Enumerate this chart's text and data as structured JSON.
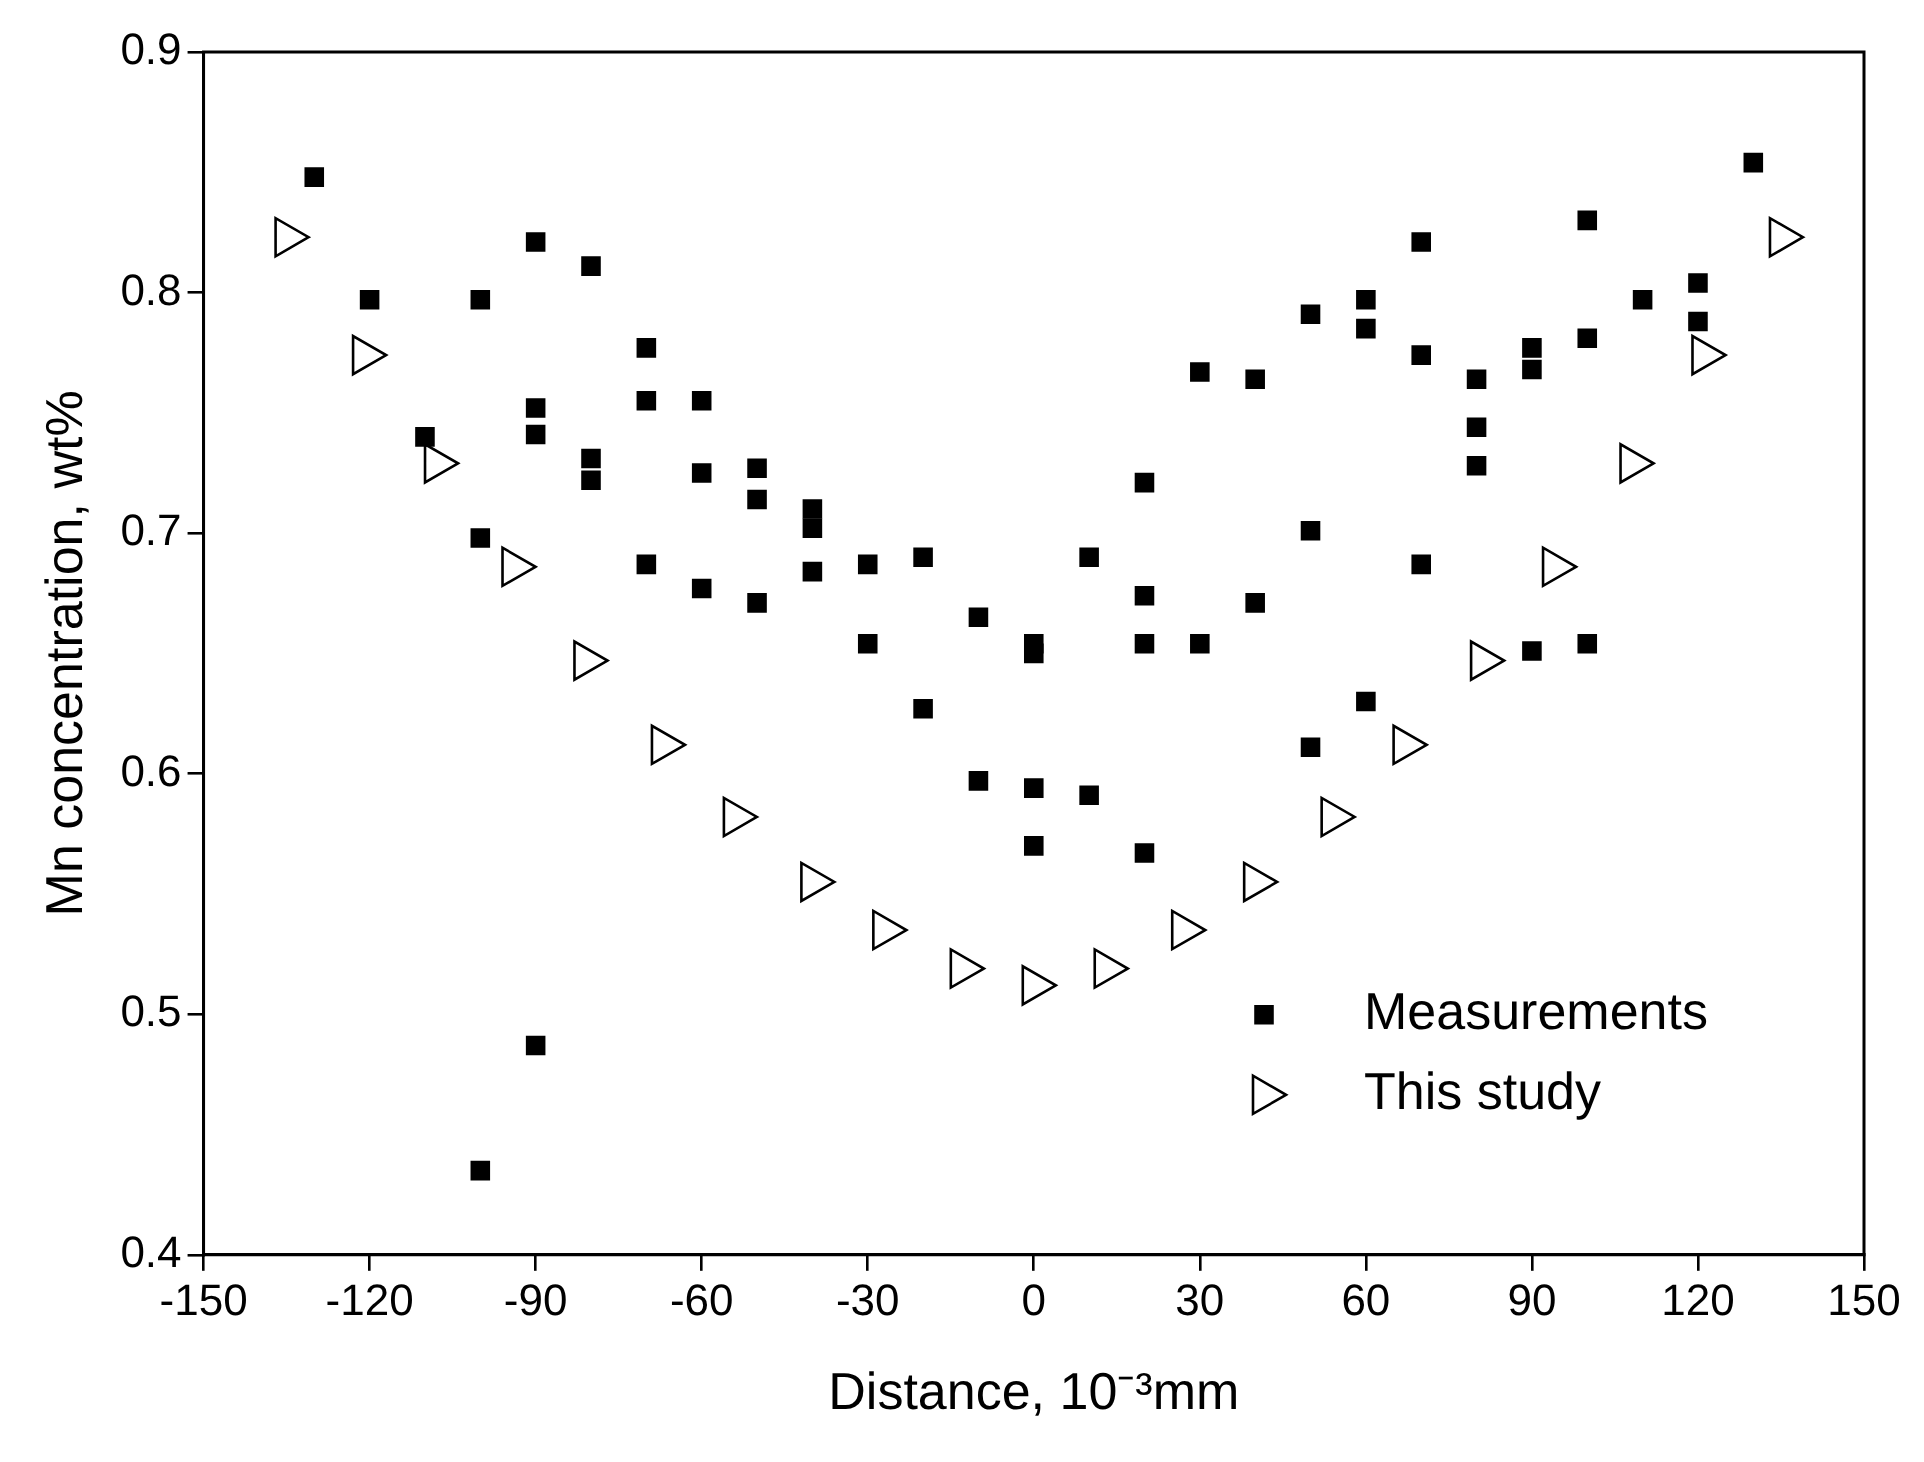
{
  "chart_data": {
    "type": "scatter",
    "xlabel": "Distance, 10⁻³mm",
    "ylabel": "Mn concentration, wt%",
    "xlim": [
      -150,
      150
    ],
    "xticks": [
      -150,
      -120,
      -90,
      -60,
      -30,
      0,
      30,
      60,
      90,
      120,
      150
    ],
    "ylim": [
      0.4,
      0.9
    ],
    "yticks": [
      0.4,
      0.5,
      0.6,
      0.7,
      0.8,
      0.9
    ],
    "grid": false,
    "legend": "bottom right",
    "series": [
      {
        "name": "Measurements",
        "color": "#000000",
        "marker": "square",
        "x": [
          -130,
          -120,
          -110,
          -100,
          -100,
          -100,
          -90,
          -90,
          -90,
          -90,
          -80,
          -80,
          -80,
          -70,
          -70,
          -70,
          -60,
          -60,
          -60,
          -50,
          -50,
          -50,
          -40,
          -40,
          -40,
          -30,
          -30,
          -20,
          -20,
          -10,
          -10,
          0,
          0,
          0,
          0,
          10,
          10,
          20,
          20,
          20,
          20,
          30,
          30,
          40,
          40,
          50,
          50,
          50,
          60,
          60,
          60,
          70,
          70,
          70,
          80,
          80,
          80,
          90,
          90,
          90,
          100,
          100,
          100,
          110,
          120,
          120,
          130
        ],
        "values": [
          0.848,
          0.797,
          0.74,
          0.797,
          0.698,
          0.435,
          0.821,
          0.752,
          0.741,
          0.487,
          0.811,
          0.731,
          0.722,
          0.777,
          0.755,
          0.687,
          0.755,
          0.725,
          0.677,
          0.727,
          0.714,
          0.671,
          0.71,
          0.702,
          0.684,
          0.687,
          0.654,
          0.69,
          0.627,
          0.665,
          0.597,
          0.654,
          0.65,
          0.594,
          0.57,
          0.69,
          0.591,
          0.721,
          0.674,
          0.654,
          0.567,
          0.767,
          0.654,
          0.764,
          0.671,
          0.791,
          0.701,
          0.611,
          0.797,
          0.785,
          0.63,
          0.821,
          0.774,
          0.687,
          0.764,
          0.744,
          0.728,
          0.777,
          0.768,
          0.651,
          0.83,
          0.781,
          0.654,
          0.797,
          0.804,
          0.788,
          0.854
        ]
      },
      {
        "name": "This study",
        "color": "#000000",
        "marker": "triangle",
        "x": [
          -135,
          -121,
          -108,
          -94,
          -81,
          -67,
          -54,
          -40,
          -27,
          -13,
          0,
          13,
          27,
          40,
          54,
          67,
          81,
          94,
          108,
          121,
          135
        ],
        "values": [
          0.823,
          0.774,
          0.729,
          0.686,
          0.647,
          0.612,
          0.582,
          0.555,
          0.535,
          0.519,
          0.512,
          0.519,
          0.535,
          0.555,
          0.582,
          0.612,
          0.647,
          0.686,
          0.729,
          0.774,
          0.823
        ]
      }
    ]
  }
}
